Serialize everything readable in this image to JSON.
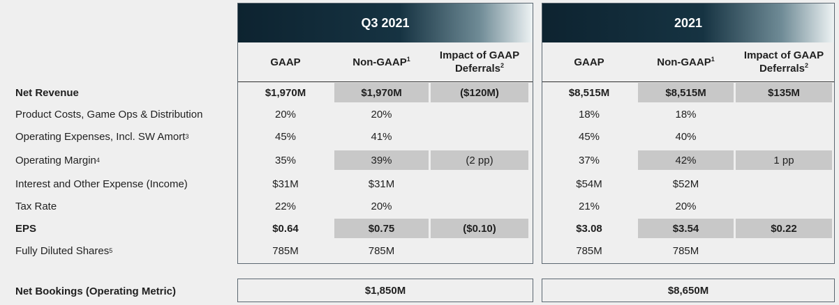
{
  "panels": {
    "q3": {
      "title": "Q3 2021"
    },
    "fy": {
      "title": "2021"
    }
  },
  "columns": {
    "gaap": "GAAP",
    "nongaap": "Non-GAAP",
    "nongaap_sup": "1",
    "impact_line1": "Impact of GAAP",
    "impact_line2": "Deferrals",
    "impact_sup": "2"
  },
  "rows": [
    {
      "label": "Net Revenue",
      "label_sup": "",
      "bold": true,
      "shaded": true,
      "q3": [
        "$1,970M",
        "$1,970M",
        "($120M)"
      ],
      "fy": [
        "$8,515M",
        "$8,515M",
        "$135M"
      ]
    },
    {
      "label": "Product Costs, Game Ops & Distribution",
      "label_sup": "",
      "bold": false,
      "shaded": false,
      "q3": [
        "20%",
        "20%",
        ""
      ],
      "fy": [
        "18%",
        "18%",
        ""
      ]
    },
    {
      "label": "Operating Expenses, Incl. SW Amort",
      "label_sup": "3",
      "bold": false,
      "shaded": false,
      "q3": [
        "45%",
        "41%",
        ""
      ],
      "fy": [
        "45%",
        "40%",
        ""
      ]
    },
    {
      "label": "Operating Margin",
      "label_sup": "4",
      "bold": false,
      "shaded": true,
      "q3": [
        "35%",
        "39%",
        "(2 pp)"
      ],
      "fy": [
        "37%",
        "42%",
        "1 pp"
      ]
    },
    {
      "label": "Interest and Other Expense (Income)",
      "label_sup": "",
      "bold": false,
      "shaded": false,
      "q3": [
        "$31M",
        "$31M",
        ""
      ],
      "fy": [
        "$54M",
        "$52M",
        ""
      ]
    },
    {
      "label": "Tax Rate",
      "label_sup": "",
      "bold": false,
      "shaded": false,
      "q3": [
        "22%",
        "20%",
        ""
      ],
      "fy": [
        "21%",
        "20%",
        ""
      ]
    },
    {
      "label": "EPS",
      "label_sup": "",
      "bold": true,
      "shaded": true,
      "q3": [
        "$0.64",
        "$0.75",
        "($0.10)"
      ],
      "fy": [
        "$3.08",
        "$3.54",
        "$0.22"
      ]
    },
    {
      "label": "Fully Diluted Shares",
      "label_sup": "5",
      "bold": false,
      "shaded": false,
      "q3": [
        "785M",
        "785M",
        ""
      ],
      "fy": [
        "785M",
        "785M",
        ""
      ]
    }
  ],
  "net_bookings": {
    "label": "Net Bookings (Operating Metric)",
    "q3": "$1,850M",
    "fy": "$8,650M"
  }
}
